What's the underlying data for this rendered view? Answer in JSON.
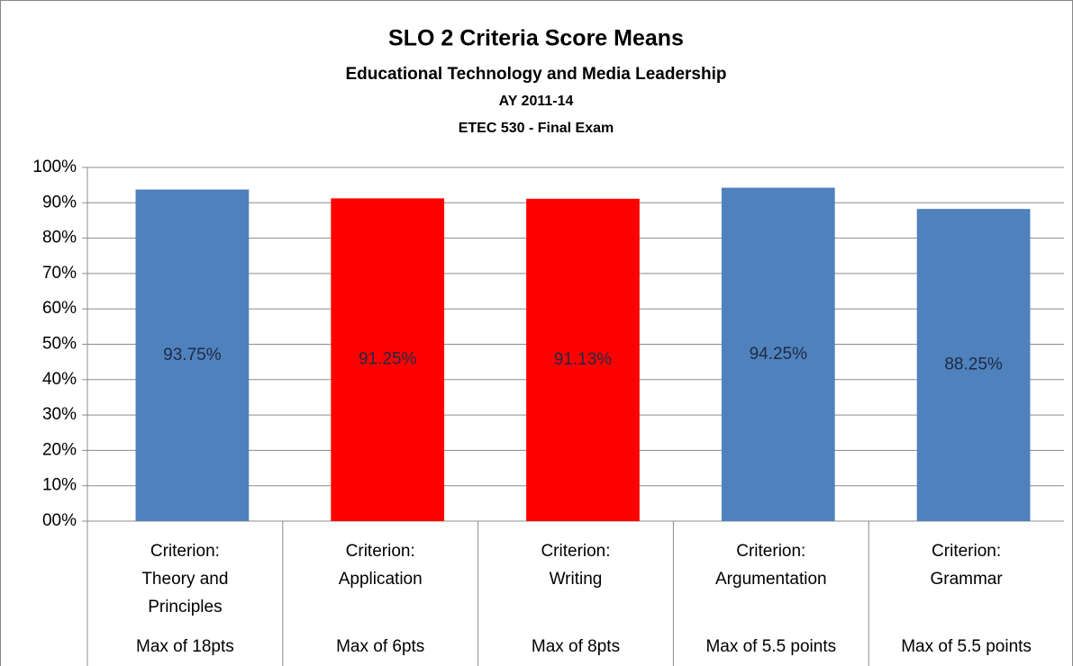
{
  "chart_data": {
    "type": "bar",
    "title": "SLO 2 Criteria Score Means",
    "subtitles": [
      "Educational Technology and Media Leadership",
      "AY 2011-14",
      "ETEC 530 - Final Exam"
    ],
    "categories": [
      "Criterion: Theory and Principles",
      "Criterion: Application",
      "Criterion: Writing",
      "Criterion: Argumentation",
      "Criterion: Grammar"
    ],
    "sublabels": [
      "Max of 18pts",
      "Max of 6pts",
      "Max of 8pts",
      "Max of 5.5 points",
      "Max of 5.5 points"
    ],
    "values": [
      93.75,
      91.25,
      91.13,
      94.25,
      88.25
    ],
    "value_labels": [
      "93.75%",
      "91.25%",
      "91.13%",
      "94.25%",
      "88.25%"
    ],
    "colors": [
      "#4f81bd",
      "#ff0000",
      "#ff0000",
      "#4f81bd",
      "#4f81bd"
    ],
    "ylim": [
      0,
      100
    ],
    "yticks": [
      {
        "value": 0,
        "label": "00%"
      },
      {
        "value": 10,
        "label": "10%"
      },
      {
        "value": 20,
        "label": "20%"
      },
      {
        "value": 30,
        "label": "30%"
      },
      {
        "value": 40,
        "label": "40%"
      },
      {
        "value": 50,
        "label": "50%"
      },
      {
        "value": 60,
        "label": "60%"
      },
      {
        "value": 70,
        "label": "70%"
      },
      {
        "value": 80,
        "label": "80%"
      },
      {
        "value": 90,
        "label": "90%"
      },
      {
        "value": 100,
        "label": "100%"
      }
    ],
    "grid": true
  }
}
